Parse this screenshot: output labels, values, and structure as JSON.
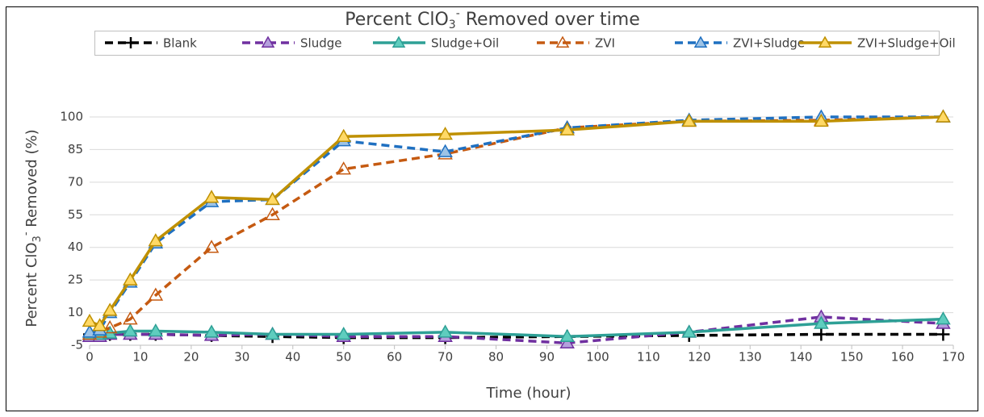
{
  "chart_data": {
    "type": "line",
    "title": [
      "Percent ClO",
      "3",
      "-",
      " Removed over time"
    ],
    "x_label": "Time (hour)",
    "y_label": [
      "Percent ClO",
      "3",
      "-",
      " Removed (%)"
    ],
    "x": [
      0,
      2,
      4,
      8,
      13,
      24,
      36,
      50,
      70,
      94,
      118,
      144,
      168
    ],
    "xlim": [
      0,
      170
    ],
    "xticks": [
      0,
      10,
      20,
      30,
      40,
      50,
      60,
      70,
      80,
      90,
      100,
      110,
      120,
      130,
      140,
      150,
      160,
      170
    ],
    "ylim": [
      -5,
      100
    ],
    "yticks": [
      -5,
      10,
      25,
      40,
      55,
      70,
      85,
      100
    ],
    "grid": true,
    "legend": "top",
    "series": [
      {
        "name": "Blank",
        "color": "#000000",
        "marker_fill": "#000000",
        "marker": "plus",
        "dashed": true,
        "values": [
          0,
          0,
          0,
          0,
          0,
          -0.5,
          -1,
          -1.5,
          -1.5,
          -1,
          -0.5,
          0,
          0
        ]
      },
      {
        "name": "Sludge",
        "color": "#7030a0",
        "marker_fill": "#b4a0dc",
        "marker": "triangle",
        "dashed": true,
        "values": [
          -1,
          -1,
          0,
          0,
          0,
          -0.5,
          0,
          -1,
          -1,
          -4,
          1,
          8,
          5
        ]
      },
      {
        "name": "Sludge+Oil",
        "color": "#2ea096",
        "marker_fill": "#5fcdbe",
        "marker": "triangle",
        "dashed": false,
        "values": [
          0,
          0,
          0.5,
          1.5,
          1.5,
          1,
          0,
          0,
          1,
          -1,
          1,
          5,
          7
        ]
      },
      {
        "name": "ZVI",
        "color": "#c55a11",
        "marker_fill": "none",
        "marker": "triangle",
        "dashed": true,
        "values": [
          0,
          1,
          3,
          7,
          18,
          40,
          55,
          76,
          83,
          95,
          98,
          98.5,
          100
        ]
      },
      {
        "name": "ZVI+Sludge",
        "color": "#1f70c1",
        "marker_fill": "#9dc3e6",
        "marker": "triangle",
        "dashed": true,
        "values": [
          1,
          2,
          10,
          24,
          42,
          61,
          62,
          89,
          84,
          95,
          98.5,
          100,
          100
        ]
      },
      {
        "name": "ZVI+Sludge+Oil",
        "color": "#bf9000",
        "marker_fill": "#ffd966",
        "marker": "triangle",
        "dashed": false,
        "values": [
          6,
          4,
          11,
          25,
          43,
          63,
          62,
          91,
          92,
          94,
          98,
          98,
          100
        ]
      }
    ]
  }
}
